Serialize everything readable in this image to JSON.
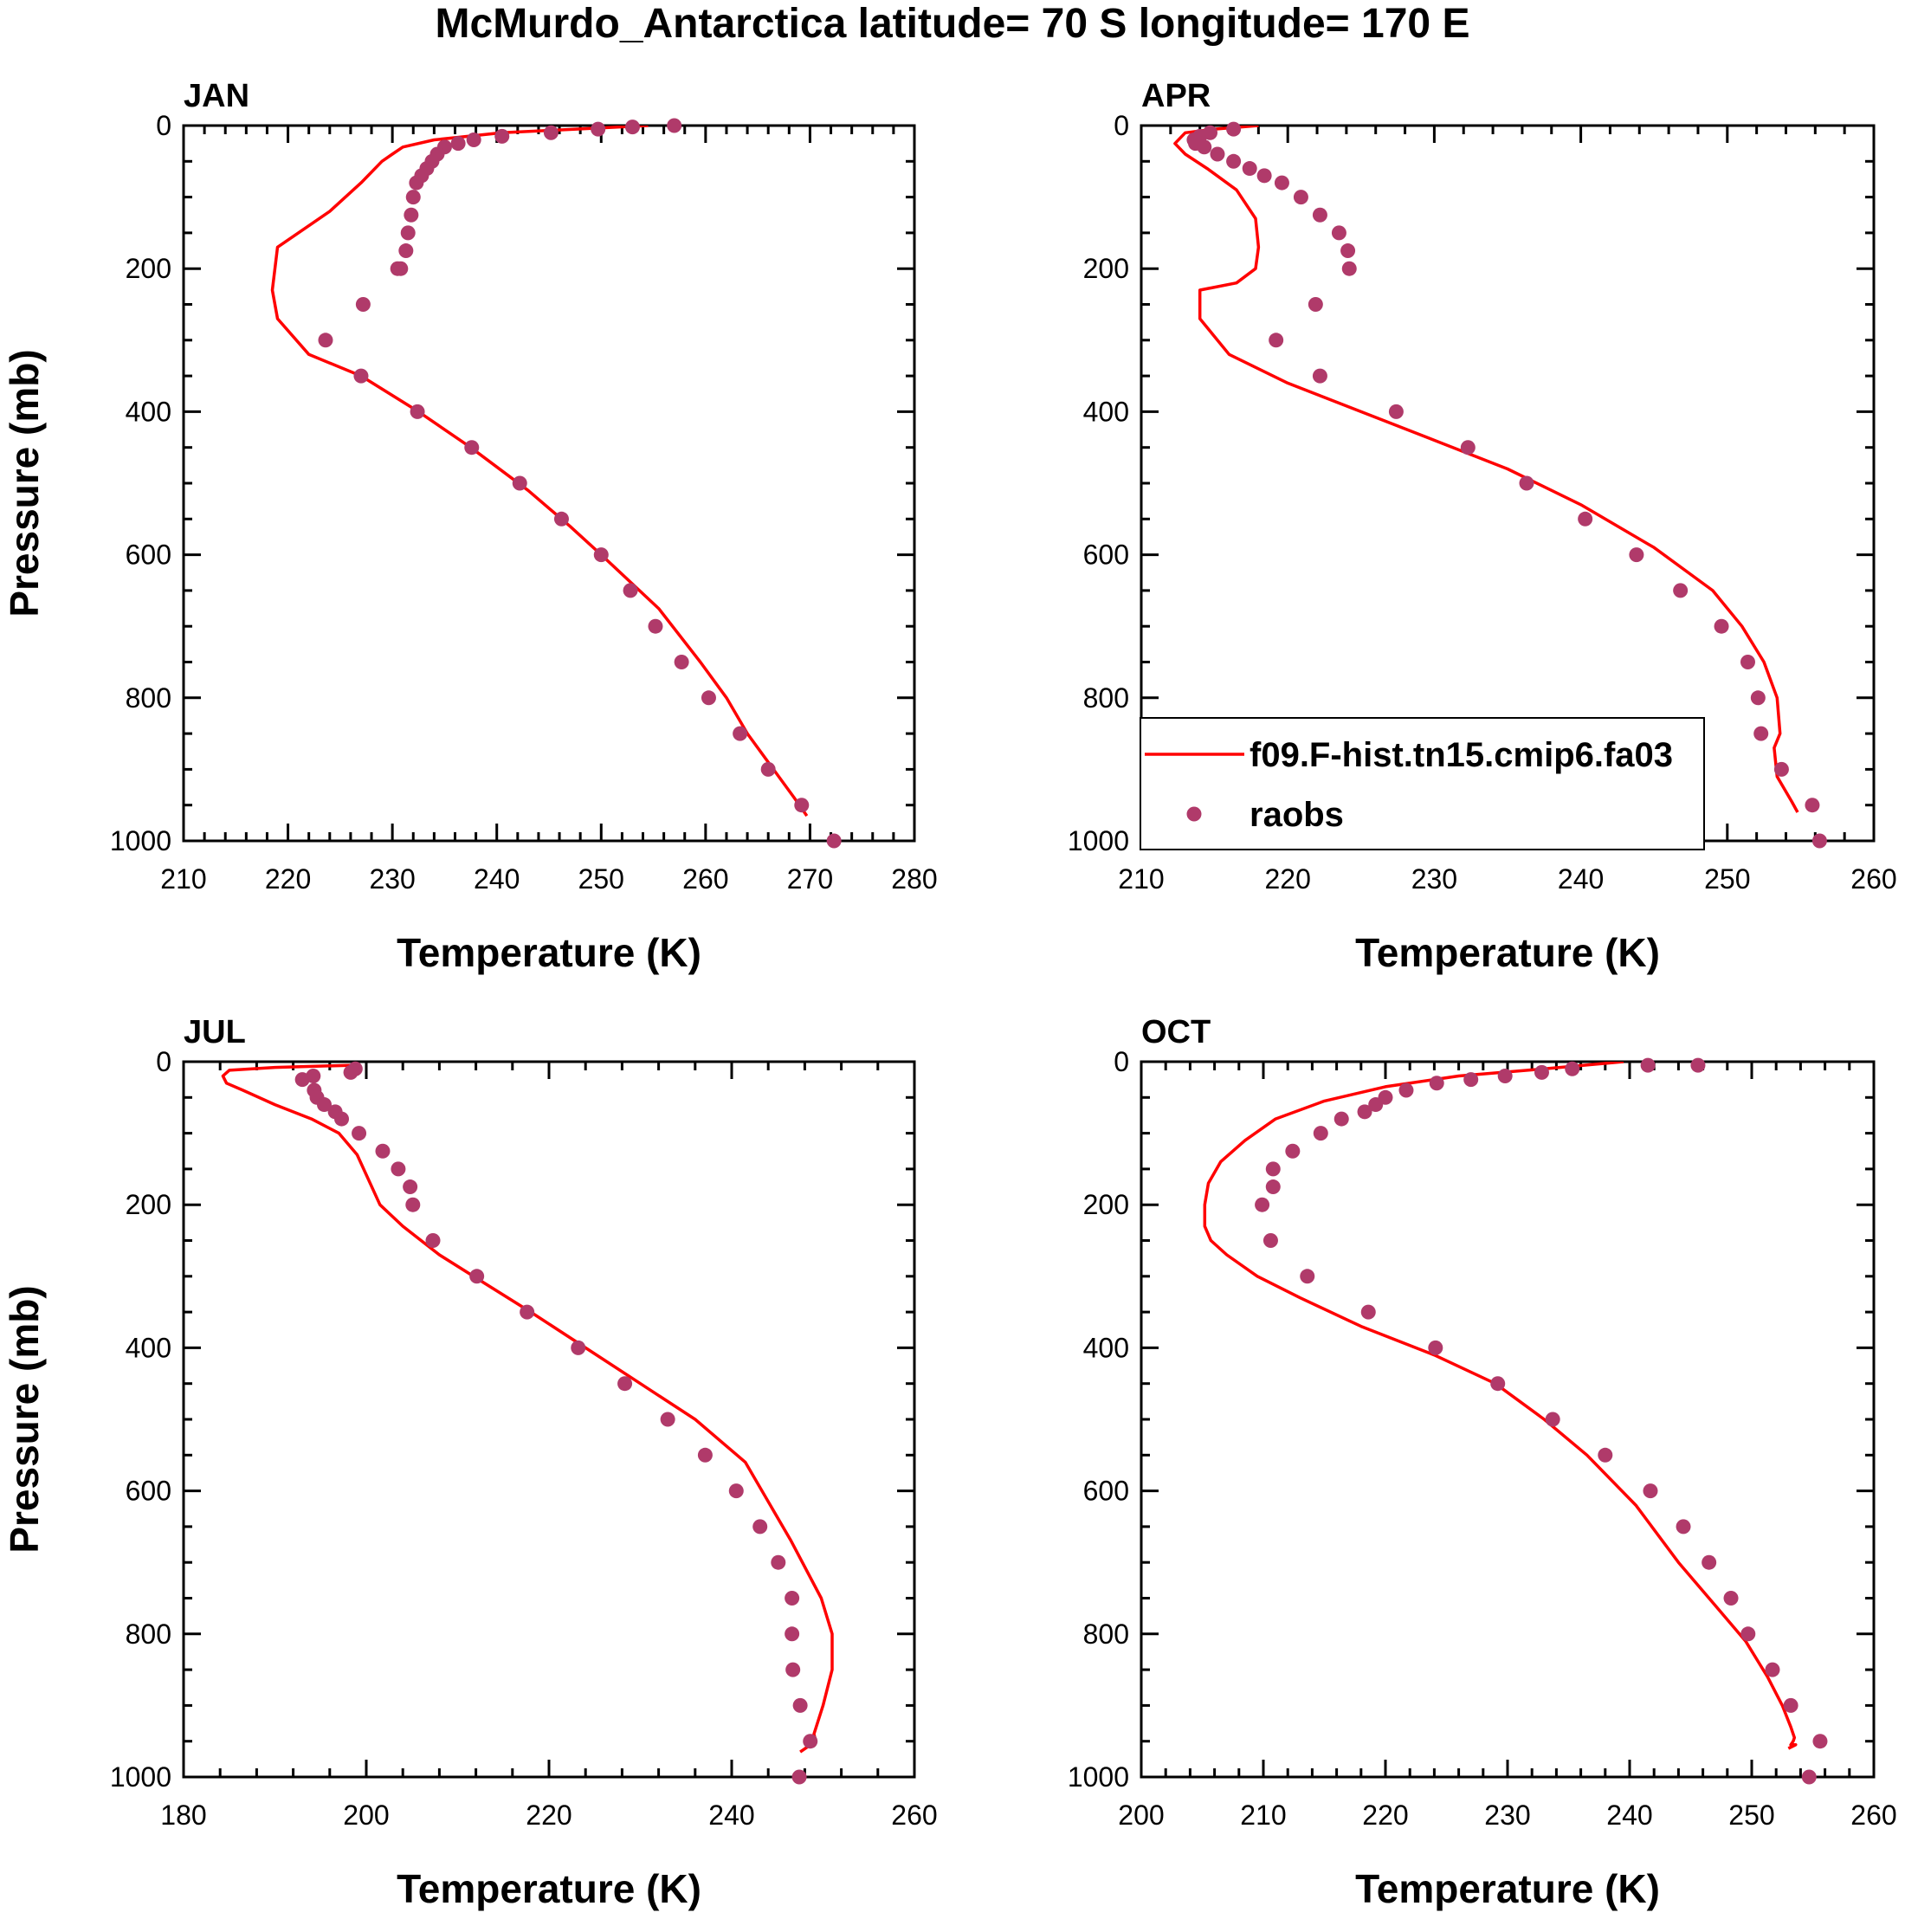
{
  "page": {
    "title": "McMurdo_Antarctica  latitude= 70 S longitude= 170 E"
  },
  "colors": {
    "model": "#ff0000",
    "obs": "#b03a6a",
    "axis": "#000000"
  },
  "legend": {
    "model_label": "f09.F-hist.tn15.cmip6.fa03",
    "obs_label": "raobs"
  },
  "chart_data": [
    {
      "type": "line+scatter",
      "panel_title": "JAN",
      "xlabel": "Temperature (K)",
      "ylabel": "Pressure (mb)",
      "xlim": [
        210,
        280
      ],
      "ylim": [
        0,
        1000
      ],
      "yreversed": true,
      "xticks": [
        210,
        220,
        230,
        240,
        250,
        260,
        270,
        280
      ],
      "yticks": [
        0,
        200,
        400,
        600,
        800,
        1000
      ],
      "grid": false,
      "series": [
        {
          "name": "f09.F-hist.tn15.cmip6.fa03",
          "kind": "line",
          "x": [
            254.5,
            240.5,
            234,
            231,
            230,
            229,
            227,
            224,
            219,
            218.5,
            219,
            222,
            227,
            232.5,
            237.5,
            243,
            247,
            250,
            255.5,
            259.5,
            262,
            264,
            266.5,
            268.5,
            269.7
          ],
          "y": [
            0,
            10,
            20,
            30,
            40,
            50,
            80,
            120,
            170,
            230,
            270,
            320,
            350,
            400,
            450,
            510,
            560,
            600,
            675,
            750,
            800,
            850,
            900,
            940,
            965
          ]
        },
        {
          "name": "raobs",
          "kind": "scatter",
          "x": [
            257,
            253,
            249.7,
            245.2,
            240.5,
            237.8,
            236.3,
            235,
            234.3,
            233.8,
            233.3,
            232.8,
            232.3,
            232,
            231.8,
            231.5,
            231.3,
            230.8,
            230.5,
            227.2,
            223.6,
            227,
            232.4,
            237.6,
            242.2,
            246.2,
            250,
            252.8,
            255.2,
            257.7,
            260.3,
            263.3,
            266,
            269.2,
            272.3
          ],
          "y": [
            0,
            2,
            5,
            10,
            15,
            20,
            25,
            30,
            40,
            50,
            60,
            70,
            80,
            100,
            125,
            150,
            175,
            200,
            200,
            250,
            300,
            350,
            400,
            450,
            500,
            550,
            600,
            650,
            700,
            750,
            800,
            850,
            900,
            950,
            1000
          ]
        }
      ]
    },
    {
      "type": "line+scatter",
      "panel_title": "APR",
      "xlabel": "Temperature (K)",
      "ylabel": "",
      "xlim": [
        210,
        260
      ],
      "ylim": [
        0,
        1000
      ],
      "yreversed": true,
      "xticks": [
        210,
        220,
        230,
        240,
        250,
        260
      ],
      "yticks": [
        0,
        200,
        400,
        600,
        800,
        1000
      ],
      "grid": false,
      "series": [
        {
          "name": "f09.F-hist.tn15.cmip6.fa03",
          "kind": "line",
          "x": [
            218,
            215,
            213,
            212.3,
            213,
            214.5,
            216.5,
            217.8,
            218,
            217.8,
            216.5,
            214,
            214,
            216,
            220,
            225,
            230,
            235,
            240,
            245,
            249,
            251,
            252.5,
            253.4,
            253.6,
            253.2,
            253.4,
            254.4,
            254.8
          ],
          "y": [
            0,
            5,
            10,
            25,
            40,
            60,
            90,
            130,
            170,
            200,
            220,
            230,
            270,
            320,
            360,
            400,
            440,
            480,
            530,
            590,
            650,
            700,
            750,
            800,
            850,
            870,
            910,
            945,
            960
          ]
        },
        {
          "name": "raobs",
          "kind": "scatter",
          "x": [
            216.3,
            214.7,
            214,
            213.6,
            213.7,
            214.3,
            215.2,
            216.3,
            217.4,
            218.4,
            219.6,
            220.9,
            222.2,
            223.5,
            224.1,
            224.2,
            221.9,
            219.2,
            222.2,
            227.4,
            232.3,
            236.3,
            240.3,
            243.8,
            246.8,
            249.6,
            251.4,
            252.1,
            252.3,
            253.7,
            255.8,
            256.3
          ],
          "y": [
            5,
            10,
            15,
            20,
            25,
            30,
            40,
            50,
            60,
            70,
            80,
            100,
            125,
            150,
            175,
            200,
            250,
            300,
            350,
            400,
            450,
            500,
            550,
            600,
            650,
            700,
            750,
            800,
            850,
            900,
            950,
            1000
          ]
        }
      ]
    },
    {
      "type": "line+scatter",
      "panel_title": "JUL",
      "xlabel": "Temperature (K)",
      "ylabel": "Pressure (mb)",
      "xlim": [
        180,
        260
      ],
      "ylim": [
        0,
        1000
      ],
      "yreversed": true,
      "xticks": [
        180,
        200,
        220,
        240,
        260
      ],
      "yticks": [
        0,
        200,
        400,
        600,
        800,
        1000
      ],
      "grid": false,
      "series": [
        {
          "name": "f09.F-hist.tn15.cmip6.fa03",
          "kind": "line",
          "x": [
            198.5,
            190,
            185,
            184.3,
            184.7,
            186.5,
            190,
            194,
            197,
            199,
            201.5,
            204,
            208,
            213,
            218,
            224,
            230,
            236,
            241.5,
            246.5,
            249.8,
            251,
            251,
            250,
            249,
            249.2,
            247.5
          ],
          "y": [
            5,
            8,
            12,
            20,
            30,
            40,
            60,
            80,
            100,
            130,
            200,
            230,
            270,
            310,
            350,
            400,
            450,
            500,
            560,
            670,
            750,
            800,
            850,
            900,
            940,
            950,
            965
          ]
        },
        {
          "name": "raobs",
          "kind": "scatter",
          "x": [
            198.8,
            198.3,
            194.2,
            193,
            194.3,
            194.6,
            195.4,
            196.6,
            197.3,
            199.2,
            201.8,
            203.5,
            204.8,
            205.1,
            207.3,
            212.1,
            217.6,
            223.2,
            228.3,
            233,
            237.1,
            240.5,
            243.1,
            245.1,
            246.6,
            246.6,
            246.7,
            247.5,
            248.6,
            247.4
          ],
          "y": [
            10,
            15,
            20,
            25,
            40,
            50,
            60,
            70,
            80,
            100,
            125,
            150,
            175,
            200,
            250,
            300,
            350,
            400,
            450,
            500,
            550,
            600,
            650,
            700,
            750,
            800,
            850,
            900,
            950,
            1000
          ]
        }
      ]
    },
    {
      "type": "line+scatter",
      "panel_title": "OCT",
      "xlabel": "Temperature (K)",
      "ylabel": "",
      "xlim": [
        200,
        260
      ],
      "ylim": [
        0,
        1000
      ],
      "yreversed": true,
      "xticks": [
        200,
        210,
        220,
        230,
        240,
        250,
        260
      ],
      "yticks": [
        0,
        200,
        400,
        600,
        800,
        1000
      ],
      "grid": false,
      "series": [
        {
          "name": "f09.F-hist.tn15.cmip6.fa03",
          "kind": "line",
          "x": [
            239.5,
            233,
            226,
            220,
            215,
            211,
            208.5,
            206.5,
            205.5,
            205.2,
            205.2,
            205.7,
            207,
            209.5,
            213,
            218,
            224,
            229,
            233,
            236.5,
            240.5,
            244,
            247,
            249.5,
            251.3,
            252.5,
            253.2,
            253.5,
            253.4,
            253.2,
            253.6,
            253
          ],
          "y": [
            0,
            10,
            20,
            35,
            55,
            80,
            110,
            140,
            170,
            200,
            230,
            250,
            270,
            300,
            330,
            370,
            410,
            450,
            500,
            550,
            620,
            700,
            760,
            810,
            860,
            900,
            930,
            945,
            950,
            955,
            955,
            960
          ]
        },
        {
          "name": "raobs",
          "kind": "scatter",
          "x": [
            245.6,
            241.5,
            235.3,
            232.8,
            229.8,
            227,
            224.2,
            221.7,
            220,
            219.2,
            218.3,
            216.4,
            214.7,
            212.4,
            210.8,
            210.8,
            209.9,
            210.6,
            213.6,
            218.6,
            224.1,
            229.2,
            233.7,
            238,
            241.7,
            244.4,
            246.5,
            248.3,
            249.7,
            251.7,
            253.2,
            255.6,
            254.7
          ],
          "y": [
            5,
            5,
            10,
            15,
            20,
            25,
            30,
            40,
            50,
            60,
            70,
            80,
            100,
            125,
            150,
            175,
            200,
            250,
            300,
            350,
            400,
            450,
            500,
            550,
            600,
            650,
            700,
            750,
            800,
            850,
            900,
            950,
            1000
          ]
        }
      ]
    }
  ]
}
